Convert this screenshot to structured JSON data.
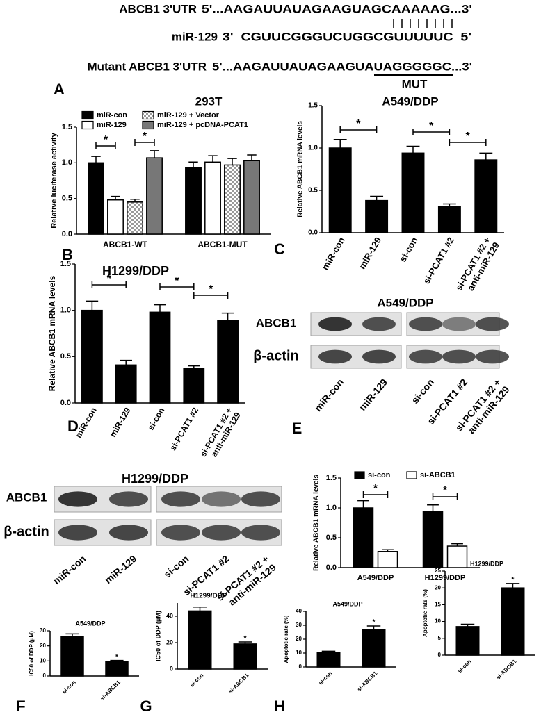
{
  "sequences": {
    "wild_type": {
      "label": "ABCB1 3'UTR",
      "sequence": "5'...AAGAUUAUAGAAGUAGCAAAAAG...3'"
    },
    "mirna": {
      "label": "miR-129",
      "sequence": "3'  CGUUCGGGUCUGGCGUUUUUC  5'"
    },
    "mutant": {
      "label": "Mutant ABCB1 3'UTR",
      "sequence": "5'...AAGAUUAUAGAAGUAUAGGGGGC...3'"
    },
    "mutation_label": "MUT"
  },
  "panel_letters": [
    "A",
    "B",
    "C",
    "D",
    "E",
    "F",
    "G",
    "H"
  ],
  "chart_data": [
    {
      "type": "bar",
      "title": "293T",
      "y_label": "Relative luciferase activity",
      "categories": [
        "ABCB1-WT",
        "ABCB1-MUT"
      ],
      "series": [
        {
          "name": "miR-con",
          "color": "#000000",
          "values": [
            1.0,
            0.93
          ],
          "errors": [
            0.09,
            0.08
          ]
        },
        {
          "name": "miR-129",
          "color": "#ffffff",
          "values": [
            0.48,
            1.01
          ],
          "errors": [
            0.05,
            0.09
          ]
        },
        {
          "name": "miR-129 + Vector",
          "color": "#9a9a9a",
          "pattern": "checkered",
          "values": [
            0.45,
            0.97
          ],
          "errors": [
            0.04,
            0.09
          ]
        },
        {
          "name": "miR-129 + pcDNA-PCAT1",
          "color": "#777777",
          "values": [
            1.07,
            1.03
          ],
          "errors": [
            0.1,
            0.08
          ]
        }
      ],
      "ylim": [
        0,
        1.5
      ],
      "yticks": [
        {
          "value": 0,
          "label": "0.0"
        },
        {
          "value": 0.5,
          "label": "0.5"
        },
        {
          "value": 1,
          "label": "1.0"
        },
        {
          "value": 1.5,
          "label": "1.5"
        }
      ],
      "annotations": [
        "*",
        "*"
      ]
    },
    {
      "type": "bar",
      "title": "A549/DDP",
      "y_label": "Relative ABCB1 mRNA levels",
      "categories": [
        "miR-con",
        "miR-129",
        "si-con",
        "si-PCAT1 #2",
        "si-PCAT1 #2 +\nanti-miR-129"
      ],
      "values": [
        1.0,
        0.38,
        0.94,
        0.31,
        0.86
      ],
      "errors": [
        0.1,
        0.05,
        0.08,
        0.03,
        0.08
      ],
      "color": "#000000",
      "ylim": [
        0,
        1.5
      ],
      "yticks": [
        {
          "value": 0,
          "label": "0.0"
        },
        {
          "value": 0.5,
          "label": "0.5"
        },
        {
          "value": 1,
          "label": "1.0"
        },
        {
          "value": 1.5,
          "label": "1.5"
        }
      ],
      "annotations": [
        "*",
        "*",
        "*"
      ]
    },
    {
      "type": "bar",
      "title": "H1299/DDP",
      "y_label": "Relative ABCB1 mRNA levels",
      "categories": [
        "miR-con",
        "miR-129",
        "si-con",
        "si-PCAT1 #2",
        "si-PCAT1 #2 +\nanti-miR-129"
      ],
      "values": [
        1.0,
        0.41,
        0.98,
        0.37,
        0.89
      ],
      "errors": [
        0.1,
        0.05,
        0.08,
        0.03,
        0.08
      ],
      "color": "#000000",
      "ylim": [
        0,
        1.5
      ],
      "yticks": [
        {
          "value": 0,
          "label": "0.0"
        },
        {
          "value": 0.5,
          "label": "0.5"
        },
        {
          "value": 1,
          "label": "1.0"
        },
        {
          "value": 1.5,
          "label": "1.5"
        }
      ],
      "annotations": [
        "*",
        "*",
        "*"
      ]
    },
    {
      "type": "bar",
      "y_label": "Relative ABCB1 mRNA levels",
      "categories": [
        "A549/DDP",
        "H1299/DDP"
      ],
      "series": [
        {
          "name": "si-con",
          "color": "#000000",
          "values": [
            1.0,
            0.94
          ],
          "errors": [
            0.12,
            0.11
          ]
        },
        {
          "name": "si-ABCB1",
          "color": "#ffffff",
          "values": [
            0.27,
            0.36
          ],
          "errors": [
            0.03,
            0.04
          ]
        }
      ],
      "ylim": [
        0,
        1.5
      ],
      "yticks": [
        {
          "value": 0,
          "label": "0.0"
        },
        {
          "value": 0.5,
          "label": "0.5"
        },
        {
          "value": 1,
          "label": "1.0"
        },
        {
          "value": 1.5,
          "label": "1.5"
        }
      ],
      "annotations": [
        "*",
        "*"
      ]
    },
    {
      "type": "bar",
      "title": "A549/DDP",
      "y_label": "IC50 of DDP (μM)",
      "categories": [
        "si-con",
        "si-ABCB1"
      ],
      "values": [
        26,
        9.5
      ],
      "errors": [
        2,
        0.8
      ],
      "color": "#000000",
      "ylim": [
        0,
        30
      ],
      "yticks": [
        0,
        10,
        20,
        30
      ],
      "annotations": [
        "*"
      ]
    },
    {
      "type": "bar",
      "title": "H1299/DDP",
      "y_label": "IC50 of DDP (μM)",
      "categories": [
        "si-con",
        "si-ABCB1"
      ],
      "values": [
        44,
        19
      ],
      "errors": [
        3,
        1.5
      ],
      "color": "#000000",
      "ylim": [
        0,
        50
      ],
      "yticks": [
        0,
        20,
        40
      ],
      "annotations": [
        "*"
      ]
    },
    {
      "type": "bar",
      "title": "A549/DDP",
      "y_label": "Apoptotic rate (%)",
      "categories": [
        "si-con",
        "si-ABCB1"
      ],
      "values": [
        10.5,
        27
      ],
      "errors": [
        0.8,
        2.5
      ],
      "color": "#000000",
      "ylim": [
        0,
        40
      ],
      "yticks": [
        0,
        10,
        20,
        30,
        40
      ],
      "annotations": [
        "*"
      ]
    },
    {
      "type": "bar",
      "title": "H1299/DDP",
      "y_label": "Apoptotic rate (%)",
      "categories": [
        "si-con",
        "si-ABCB1"
      ],
      "values": [
        8.5,
        20
      ],
      "errors": [
        0.7,
        1.3
      ],
      "color": "#000000",
      "ylim": [
        0,
        25
      ],
      "yticks": [
        0,
        5,
        10,
        15,
        20,
        25
      ],
      "annotations": [
        "*"
      ]
    }
  ],
  "blots": [
    {
      "title": "A549/DDP",
      "rows": [
        "ABCB1",
        "β-actin"
      ],
      "lanes": [
        "miR-con",
        "miR-129",
        "si-con",
        "si-PCAT1 #2",
        "si-PCAT1 #2 +\nanti-miR-129"
      ]
    },
    {
      "title": "H1299/DDP",
      "rows": [
        "ABCB1",
        "β-actin"
      ],
      "lanes": [
        "miR-con",
        "miR-129",
        "si-con",
        "si-PCAT1 #2",
        "si-PCAT1 #2 +\nanti-miR-129"
      ]
    }
  ]
}
